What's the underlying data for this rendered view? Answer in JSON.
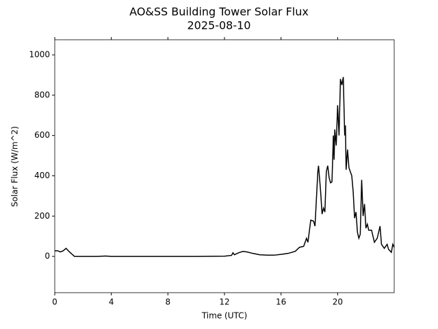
{
  "chart_data": {
    "type": "line",
    "title": "AO&SS Building Tower Solar Flux",
    "subtitle": "2025-08-10",
    "xlabel": "Time (UTC)",
    "ylabel": "Solar Flux (W/m^2)",
    "color": "#000000",
    "x": [
      0,
      0.2,
      0.4,
      0.6,
      0.8,
      1.0,
      1.2,
      1.4,
      2,
      3,
      3.6,
      4,
      6,
      8,
      10,
      12,
      12.5,
      12.6,
      12.7,
      13,
      13.3,
      13.6,
      14,
      14.5,
      15,
      15.5,
      16,
      16.5,
      17,
      17.3,
      17.6,
      17.8,
      17.9,
      18.1,
      18.3,
      18.4,
      18.6,
      18.65,
      18.8,
      18.9,
      19,
      19.1,
      19.2,
      19.3,
      19.4,
      19.5,
      19.6,
      19.7,
      19.75,
      19.8,
      19.9,
      20,
      20.1,
      20.2,
      20.3,
      20.4,
      20.5,
      20.55,
      20.6,
      20.7,
      20.8,
      21,
      21.1,
      21.2,
      21.3,
      21.4,
      21.5,
      21.6,
      21.7,
      21.8,
      21.9,
      22,
      22.1,
      22.2,
      22.4,
      22.6,
      22.8,
      23,
      23.1,
      23.3,
      23.5,
      23.6,
      23.8,
      23.9,
      24
    ],
    "values": [
      28,
      28,
      22,
      28,
      40,
      25,
      12,
      0,
      0,
      0,
      2,
      0,
      0,
      0,
      0,
      1,
      5,
      18,
      8,
      18,
      25,
      22,
      15,
      8,
      6,
      6,
      10,
      15,
      25,
      45,
      50,
      90,
      70,
      180,
      175,
      150,
      420,
      450,
      320,
      210,
      240,
      220,
      420,
      450,
      390,
      365,
      370,
      600,
      480,
      630,
      550,
      750,
      600,
      880,
      850,
      890,
      600,
      650,
      430,
      530,
      440,
      400,
      320,
      190,
      220,
      120,
      90,
      110,
      380,
      200,
      260,
      140,
      160,
      130,
      130,
      70,
      90,
      150,
      60,
      40,
      60,
      35,
      20,
      60,
      45
    ],
    "xlim": [
      0,
      24
    ],
    "ylim": [
      -180,
      1075
    ],
    "xticks": [
      0,
      4,
      8,
      12,
      16,
      20
    ],
    "yticks": [
      0,
      200,
      400,
      600,
      800,
      1000
    ]
  }
}
